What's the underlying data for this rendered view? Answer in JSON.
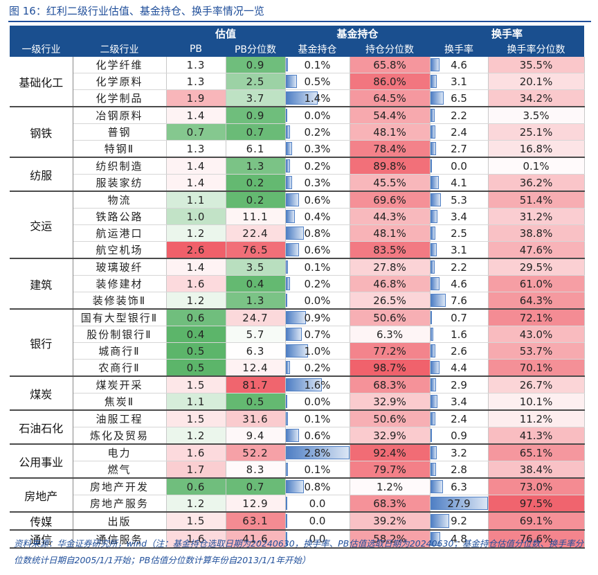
{
  "title": "图 16：红利二级行业估值、基金持仓、换手率情况一览",
  "header": {
    "group_valuation": "估值",
    "group_fund": "基金持仓",
    "group_turnover": "换手率",
    "cols": [
      "一级行业",
      "二级行业",
      "PB",
      "PB分位数",
      "基金持仓",
      "持仓分位数",
      "换手率",
      "换手率分位数"
    ]
  },
  "colors": {
    "header_bg": "#1a4f8f",
    "green": "#5cb56a",
    "red": "#f0606a",
    "bar": "#4f7fc4"
  },
  "groups": [
    {
      "l1": "基础化工",
      "rows": [
        {
          "l2": "化学纤维",
          "pb": "1.3",
          "pbp": "0.9",
          "fund": "0.1%",
          "fundp": "65.8%",
          "turn": "4.6",
          "turnp": "35.5%"
        },
        {
          "l2": "化学原料",
          "pb": "1.3",
          "pbp": "2.5",
          "fund": "0.5%",
          "fundp": "86.0%",
          "turn": "3.1",
          "turnp": "20.1%"
        },
        {
          "l2": "化学制品",
          "pb": "1.9",
          "pbp": "3.7",
          "fund": "1.4%",
          "fundp": "64.5%",
          "turn": "6.5",
          "turnp": "34.2%"
        }
      ]
    },
    {
      "l1": "钢铁",
      "rows": [
        {
          "l2": "冶钢原料",
          "pb": "1.4",
          "pbp": "0.9",
          "fund": "0.0%",
          "fundp": "54.4%",
          "turn": "2.2",
          "turnp": "3.5%"
        },
        {
          "l2": "普钢",
          "pb": "0.7",
          "pbp": "0.7",
          "fund": "0.2%",
          "fundp": "48.1%",
          "turn": "2.4",
          "turnp": "25.1%"
        },
        {
          "l2": "特钢Ⅱ",
          "pb": "1.3",
          "pbp": "6.1",
          "fund": "0.3%",
          "fundp": "78.4%",
          "turn": "2.7",
          "turnp": "16.8%"
        }
      ]
    },
    {
      "l1": "纺服",
      "rows": [
        {
          "l2": "纺织制造",
          "pb": "1.4",
          "pbp": "1.3",
          "fund": "0.2%",
          "fundp": "89.8%",
          "turn": "0.0",
          "turnp": "0.1%"
        },
        {
          "l2": "服装家纺",
          "pb": "1.4",
          "pbp": "0.2",
          "fund": "0.3%",
          "fundp": "45.5%",
          "turn": "4.1",
          "turnp": "36.2%"
        }
      ]
    },
    {
      "l1": "交运",
      "rows": [
        {
          "l2": "物流",
          "pb": "1.1",
          "pbp": "0.2",
          "fund": "0.6%",
          "fundp": "69.6%",
          "turn": "5.3",
          "turnp": "51.4%"
        },
        {
          "l2": "铁路公路",
          "pb": "1.0",
          "pbp": "11.1",
          "fund": "0.4%",
          "fundp": "44.3%",
          "turn": "3.4",
          "turnp": "31.2%"
        },
        {
          "l2": "航运港口",
          "pb": "1.2",
          "pbp": "22.4",
          "fund": "0.8%",
          "fundp": "48.1%",
          "turn": "2.5",
          "turnp": "38.8%"
        },
        {
          "l2": "航空机场",
          "pb": "2.6",
          "pbp": "76.5",
          "fund": "0.6%",
          "fundp": "83.5%",
          "turn": "3.1",
          "turnp": "47.6%"
        }
      ]
    },
    {
      "l1": "建筑",
      "rows": [
        {
          "l2": "玻璃玻纤",
          "pb": "1.4",
          "pbp": "3.5",
          "fund": "0.1%",
          "fundp": "27.8%",
          "turn": "2.2",
          "turnp": "29.5%"
        },
        {
          "l2": "装修建材",
          "pb": "1.6",
          "pbp": "0.4",
          "fund": "0.2%",
          "fundp": "46.8%",
          "turn": "4.6",
          "turnp": "61.0%"
        },
        {
          "l2": "装修装饰Ⅱ",
          "pb": "1.2",
          "pbp": "1.3",
          "fund": "0.0%",
          "fundp": "26.5%",
          "turn": "7.6",
          "turnp": "64.3%"
        }
      ]
    },
    {
      "l1": "银行",
      "rows": [
        {
          "l2": "国有大型银行Ⅱ",
          "pb": "0.6",
          "pbp": "24.7",
          "fund": "0.9%",
          "fundp": "50.6%",
          "turn": "0.7",
          "turnp": "72.1%"
        },
        {
          "l2": "股份制银行Ⅱ",
          "pb": "0.4",
          "pbp": "5.7",
          "fund": "0.7%",
          "fundp": "6.3%",
          "turn": "1.6",
          "turnp": "43.0%"
        },
        {
          "l2": "城商行Ⅱ",
          "pb": "0.5",
          "pbp": "6.3",
          "fund": "1.0%",
          "fundp": "77.2%",
          "turn": "2.6",
          "turnp": "53.7%"
        },
        {
          "l2": "农商行Ⅱ",
          "pb": "0.5",
          "pbp": "12.4",
          "fund": "0.2%",
          "fundp": "98.7%",
          "turn": "4.4",
          "turnp": "70.1%"
        }
      ]
    },
    {
      "l1": "煤炭",
      "rows": [
        {
          "l2": "煤炭开采",
          "pb": "1.5",
          "pbp": "81.7",
          "fund": "1.6%",
          "fundp": "68.3%",
          "turn": "2.9",
          "turnp": "26.7%"
        },
        {
          "l2": "焦炭Ⅱ",
          "pb": "1.1",
          "pbp": "0.5",
          "fund": "0.0%",
          "fundp": "32.9%",
          "turn": "3.4",
          "turnp": "10.1%"
        }
      ]
    },
    {
      "l1": "石油石化",
      "rows": [
        {
          "l2": "油服工程",
          "pb": "1.5",
          "pbp": "31.6",
          "fund": "0.1%",
          "fundp": "50.6%",
          "turn": "2.4",
          "turnp": "11.2%"
        },
        {
          "l2": "炼化及贸易",
          "pb": "1.2",
          "pbp": "9.4",
          "fund": "0.6%",
          "fundp": "32.9%",
          "turn": "0.9",
          "turnp": "41.3%"
        }
      ]
    },
    {
      "l1": "公用事业",
      "rows": [
        {
          "l2": "电力",
          "pb": "1.6",
          "pbp": "52.2",
          "fund": "2.8%",
          "fundp": "92.4%",
          "turn": "3.2",
          "turnp": "65.1%"
        },
        {
          "l2": "燃气",
          "pb": "1.7",
          "pbp": "8.3",
          "fund": "0.1%",
          "fundp": "79.7%",
          "turn": "2.8",
          "turnp": "38.4%"
        }
      ]
    },
    {
      "l1": "房地产",
      "rows": [
        {
          "l2": "房地产开发",
          "pb": "0.6",
          "pbp": "0.7",
          "fund": "0.8%",
          "fundp": "1.2%",
          "turn": "6.3",
          "turnp": "73.0%"
        },
        {
          "l2": "房地产服务",
          "pb": "1.2",
          "pbp": "12.9",
          "fund": "0.0",
          "fundp": "68.3%",
          "turn": "27.9",
          "turnp": "97.5%"
        }
      ]
    },
    {
      "l1": "传媒",
      "rows": [
        {
          "l2": "出版",
          "pb": "1.5",
          "pbp": "63.1",
          "fund": "0.0",
          "fundp": "39.2%",
          "turn": "9.2",
          "turnp": "69.1%"
        }
      ]
    },
    {
      "l1": "通信",
      "rows": [
        {
          "l2": "通信服务",
          "pb": "1.6",
          "pbp": "41.6",
          "fund": "0.0",
          "fundp": "58.2%",
          "turn": "4.8",
          "turnp": "76.6%"
        }
      ]
    }
  ],
  "source": "资料来源：华金证券研究所，wind（注：基金持仓选取日期为20240630，换手率、PB估值选取日期为20240630；基金持仓估值分位数、换手率分位数统计日期自2005/1/1开始；PB估值分位数计算年份自2013/1/1年开始）"
}
